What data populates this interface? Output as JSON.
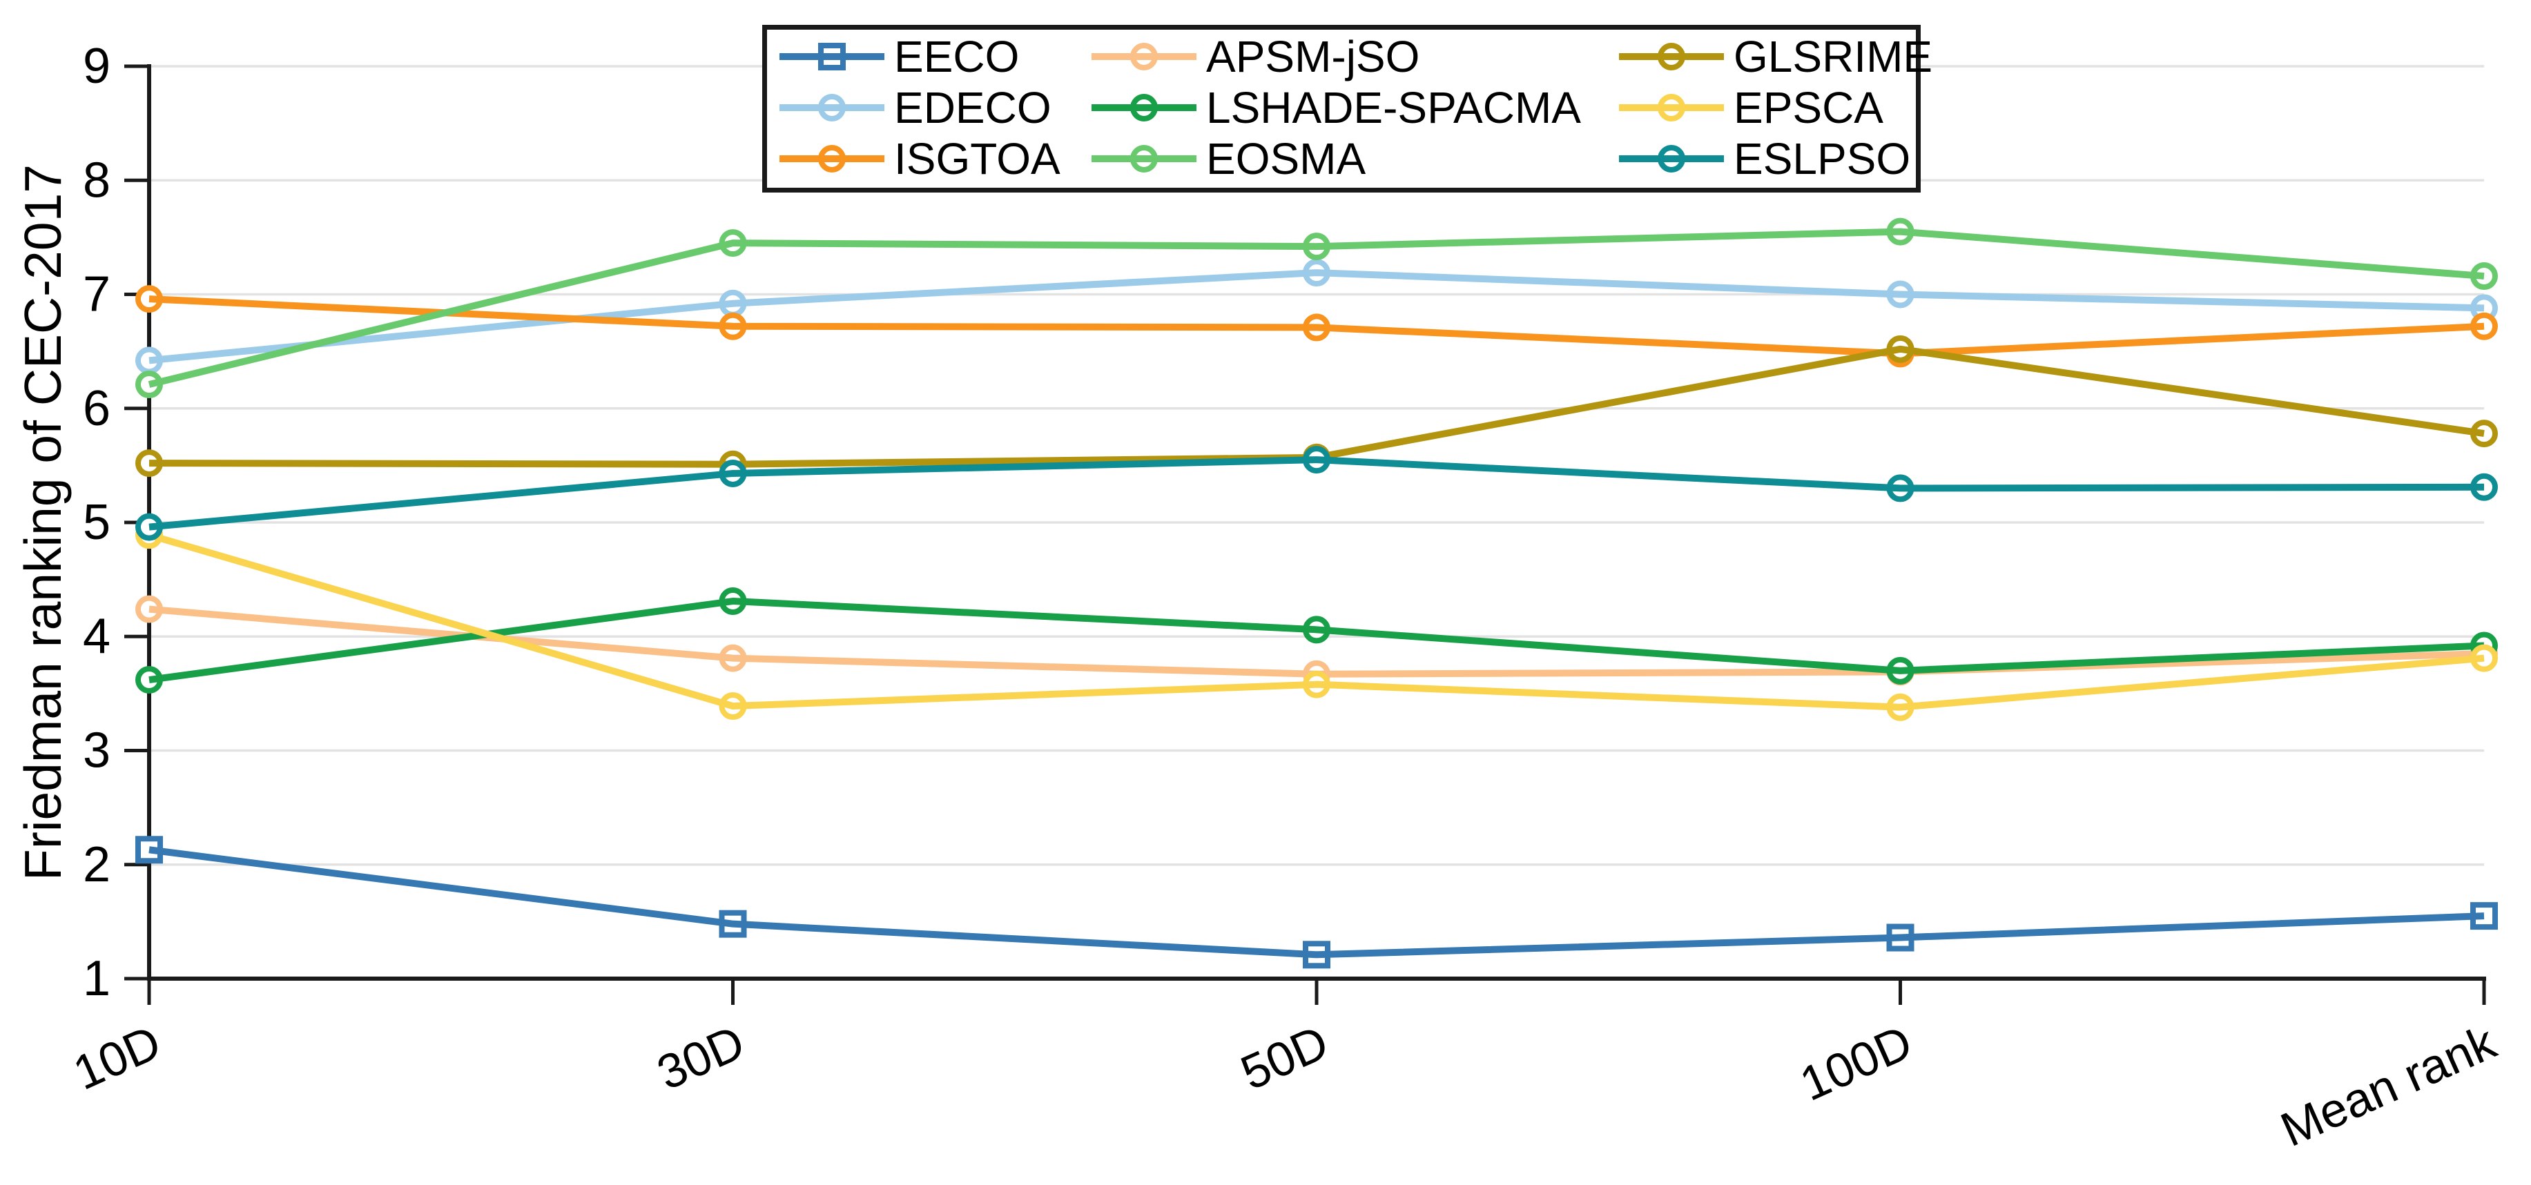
{
  "figure": {
    "background": "#ffffff",
    "axis_color": "#1a1a1a",
    "grid_color": "#e2e2e2",
    "text_color": "#000000"
  },
  "chart_data": {
    "type": "line",
    "title": "",
    "xlabel": "",
    "ylabel": "Friedman ranking of CEC-2017",
    "categories": [
      "10D",
      "30D",
      "50D",
      "100D",
      "Mean rank"
    ],
    "ylim": [
      1,
      9
    ],
    "yticks": [
      1,
      2,
      3,
      4,
      5,
      6,
      7,
      8,
      9
    ],
    "grid": "horizontal",
    "legend_position": "top-center",
    "legend_columns": 3,
    "series": [
      {
        "name": "EECO",
        "color": "#3679B2",
        "marker": "square",
        "values": [
          2.13,
          1.48,
          1.21,
          1.36,
          1.55
        ]
      },
      {
        "name": "EDECO",
        "color": "#9BCBE9",
        "marker": "circle",
        "values": [
          6.42,
          6.92,
          7.19,
          7.0,
          6.88
        ]
      },
      {
        "name": "ISGTOA",
        "color": "#F8941D",
        "marker": "circle",
        "values": [
          6.96,
          6.72,
          6.71,
          6.48,
          6.72
        ]
      },
      {
        "name": "APSM-jSO",
        "color": "#FAC088",
        "marker": "circle",
        "values": [
          4.24,
          3.81,
          3.67,
          3.69,
          3.85
        ]
      },
      {
        "name": "LSHADE-SPACMA",
        "color": "#18A048",
        "marker": "circle",
        "values": [
          3.62,
          4.31,
          4.06,
          3.7,
          3.92
        ]
      },
      {
        "name": "EOSMA",
        "color": "#69C96D",
        "marker": "circle",
        "values": [
          6.21,
          7.45,
          7.42,
          7.55,
          7.16
        ]
      },
      {
        "name": "GLSRIME",
        "color": "#B2940F",
        "marker": "circle",
        "values": [
          5.52,
          5.51,
          5.57,
          6.52,
          5.78
        ]
      },
      {
        "name": "EPSCA",
        "color": "#FAD44E",
        "marker": "circle",
        "values": [
          4.89,
          3.39,
          3.58,
          3.38,
          3.81
        ]
      },
      {
        "name": "ESLPSO",
        "color": "#0F8D95",
        "marker": "circle",
        "values": [
          4.96,
          5.43,
          5.55,
          5.3,
          5.31
        ]
      }
    ]
  },
  "legend": {
    "columns": [
      [
        "EECO",
        "EDECO",
        "ISGTOA"
      ],
      [
        "APSM-jSO",
        "LSHADE-SPACMA",
        "EOSMA"
      ],
      [
        "GLSRIME",
        "EPSCA",
        "ESLPSO"
      ]
    ]
  }
}
